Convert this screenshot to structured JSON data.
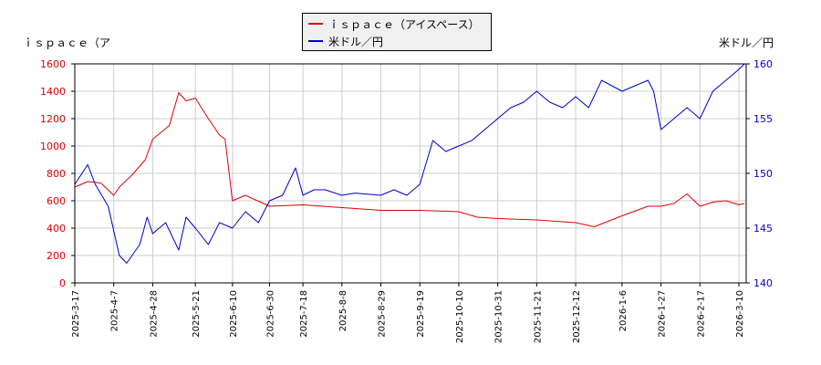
{
  "chart_data": {
    "type": "line",
    "left_axis_title": "ｉｓｐａｃｅ（ア",
    "right_axis_title": "米ドル／円",
    "x_ticks": [
      "2025-3-17",
      "2025-4-7",
      "2025-4-28",
      "2025-5-21",
      "2025-6-10",
      "2025-6-30",
      "2025-7-18",
      "2025-8-8",
      "2025-8-29",
      "2025-9-19",
      "2025-10-10",
      "2025-10-31",
      "2025-11-21",
      "2025-12-12",
      "2026-1-6",
      "2026-1-27",
      "2026-2-17",
      "2026-3-10"
    ],
    "y_left": {
      "min": 0,
      "max": 1600,
      "ticks": [
        0,
        200,
        400,
        600,
        800,
        1000,
        1200,
        1400,
        1600
      ]
    },
    "y_right": {
      "min": 140,
      "max": 160,
      "ticks": [
        140,
        145,
        150,
        155,
        160
      ]
    },
    "grid": true,
    "colors": {
      "series1": "#e00000",
      "series2": "#0000cc",
      "grid": "#cccccc",
      "plot_border": "#000000"
    },
    "series": [
      {
        "name": "ｉｓｐａｃｅ（アイスペース）",
        "axis": "left",
        "x": [
          "2025-3-17",
          "2025-3-24",
          "2025-3-31",
          "2025-4-7",
          "2025-4-10",
          "2025-4-17",
          "2025-4-24",
          "2025-4-28",
          "2025-5-7",
          "2025-5-12",
          "2025-5-16",
          "2025-5-21",
          "2025-5-28",
          "2025-6-3",
          "2025-6-6",
          "2025-6-10",
          "2025-6-17",
          "2025-6-30",
          "2025-7-18",
          "2025-8-8",
          "2025-8-29",
          "2025-9-19",
          "2025-10-10",
          "2025-10-20",
          "2025-10-31",
          "2025-11-21",
          "2025-12-12",
          "2025-12-22",
          "2026-1-6",
          "2026-1-20",
          "2026-1-27",
          "2026-2-3",
          "2026-2-10",
          "2026-2-17",
          "2026-2-24",
          "2026-3-3",
          "2026-3-10",
          "2026-3-13"
        ],
        "values": [
          700,
          740,
          730,
          640,
          700,
          790,
          900,
          1050,
          1150,
          1390,
          1330,
          1350,
          1200,
          1080,
          1050,
          600,
          640,
          560,
          570,
          550,
          530,
          530,
          520,
          480,
          470,
          460,
          440,
          410,
          490,
          560,
          560,
          580,
          650,
          560,
          590,
          600,
          570,
          580
        ]
      },
      {
        "name": "米ドル／円",
        "axis": "right",
        "x": [
          "2025-3-17",
          "2025-3-24",
          "2025-3-28",
          "2025-4-4",
          "2025-4-10",
          "2025-4-14",
          "2025-4-21",
          "2025-4-25",
          "2025-4-28",
          "2025-5-5",
          "2025-5-12",
          "2025-5-16",
          "2025-5-21",
          "2025-5-28",
          "2025-6-3",
          "2025-6-10",
          "2025-6-17",
          "2025-6-24",
          "2025-6-30",
          "2025-7-7",
          "2025-7-14",
          "2025-7-18",
          "2025-7-24",
          "2025-7-30",
          "2025-8-8",
          "2025-8-15",
          "2025-8-29",
          "2025-9-5",
          "2025-9-12",
          "2025-9-19",
          "2025-9-26",
          "2025-10-3",
          "2025-10-10",
          "2025-10-17",
          "2025-10-24",
          "2025-10-31",
          "2025-11-7",
          "2025-11-14",
          "2025-11-21",
          "2025-11-28",
          "2025-12-5",
          "2025-12-12",
          "2025-12-19",
          "2025-12-26",
          "2026-1-6",
          "2026-1-13",
          "2026-1-20",
          "2026-1-23",
          "2026-1-27",
          "2026-2-3",
          "2026-2-10",
          "2026-2-17",
          "2026-2-24",
          "2026-3-3",
          "2026-3-10",
          "2026-3-13"
        ],
        "values": [
          149,
          150.8,
          149,
          147,
          142.5,
          141.8,
          143.5,
          146,
          144.5,
          145.5,
          143,
          146,
          145,
          143.5,
          145.5,
          145,
          146.5,
          145.5,
          147.5,
          148,
          150.5,
          148,
          148.5,
          148.5,
          148,
          148.2,
          148,
          148.5,
          148,
          149,
          153,
          152,
          152.5,
          153,
          154,
          155,
          156,
          156.5,
          157.5,
          156.5,
          156,
          157,
          156,
          158.5,
          157.5,
          158,
          158.5,
          157.5,
          154,
          155,
          156,
          155,
          157.5,
          158.5,
          159.5,
          160
        ]
      }
    ]
  }
}
